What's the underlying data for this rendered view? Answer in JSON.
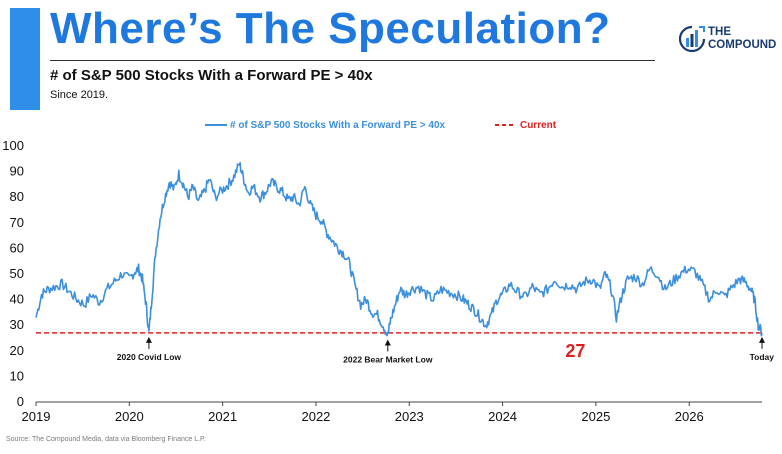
{
  "header": {
    "title": "Where’s The Speculation?",
    "subtitle": "# of S&P 500 Stocks With a Forward PE > 40x",
    "since": "Since 2019."
  },
  "logo": {
    "line1": "THE",
    "line2": "COMPOUND",
    "icon": "bar-chart-circle-icon"
  },
  "source": "Source: The Compound Media, data via Bloomberg Finance L.P.",
  "colors": {
    "accent": "#2F8FE8",
    "title": "#1F78DD",
    "series": "#3C8FDD",
    "current": "#E02020"
  },
  "chart_data": {
    "type": "line",
    "title": "",
    "xlabel": "",
    "ylabel": "",
    "ylim": [
      0,
      100
    ],
    "y_ticks": [
      "0",
      "10",
      "20",
      "30",
      "40",
      "50",
      "60",
      "70",
      "80",
      "90",
      "100"
    ],
    "x_ticks": [
      "2019",
      "2020",
      "2021",
      "2022",
      "2023",
      "2024",
      "2025",
      "2026"
    ],
    "xlim": [
      2019.0,
      2026.78
    ],
    "grid": false,
    "legend": {
      "position": "top-center"
    },
    "series": [
      {
        "name": "# of S&P 500 Stocks With a Forward PE > 40x",
        "color": "#3C8FDD",
        "x": [
          2019.0,
          2019.06,
          2019.12,
          2019.2,
          2019.28,
          2019.36,
          2019.44,
          2019.52,
          2019.6,
          2019.68,
          2019.76,
          2019.84,
          2019.92,
          2020.0,
          2020.06,
          2020.1,
          2020.14,
          2020.18,
          2020.21,
          2020.24,
          2020.28,
          2020.33,
          2020.38,
          2020.43,
          2020.48,
          2020.53,
          2020.58,
          2020.63,
          2020.68,
          2020.74,
          2020.8,
          2020.86,
          2020.92,
          2021.0,
          2021.06,
          2021.12,
          2021.18,
          2021.22,
          2021.27,
          2021.33,
          2021.4,
          2021.46,
          2021.52,
          2021.58,
          2021.64,
          2021.7,
          2021.76,
          2021.82,
          2021.88,
          2021.94,
          2022.0,
          2022.06,
          2022.12,
          2022.18,
          2022.24,
          2022.3,
          2022.36,
          2022.42,
          2022.48,
          2022.54,
          2022.6,
          2022.66,
          2022.72,
          2022.77,
          2022.8,
          2022.85,
          2022.9,
          2022.96,
          2023.02,
          2023.1,
          2023.18,
          2023.26,
          2023.34,
          2023.42,
          2023.5,
          2023.58,
          2023.64,
          2023.7,
          2023.76,
          2023.82,
          2023.88,
          2023.94,
          2024.0,
          2024.08,
          2024.16,
          2024.24,
          2024.32,
          2024.4,
          2024.48,
          2024.56,
          2024.64,
          2024.72,
          2024.8,
          2024.88,
          2024.96,
          2025.04,
          2025.1,
          2025.16,
          2025.22,
          2025.28,
          2025.34,
          2025.42,
          2025.5,
          2025.58,
          2025.66,
          2025.74,
          2025.82,
          2025.9,
          2025.98,
          2026.06,
          2026.14,
          2026.22,
          2026.3,
          2026.38,
          2026.46,
          2026.54,
          2026.6,
          2026.66,
          2026.7,
          2026.74,
          2026.78
        ],
        "y": [
          33,
          42,
          44,
          45,
          46,
          43,
          40,
          38,
          42,
          39,
          44,
          47,
          50,
          48,
          51,
          52,
          48,
          38,
          27,
          40,
          58,
          72,
          80,
          86,
          83,
          89,
          85,
          80,
          84,
          78,
          82,
          87,
          80,
          83,
          85,
          88,
          93,
          88,
          82,
          84,
          80,
          82,
          86,
          84,
          82,
          79,
          80,
          77,
          84,
          77,
          73,
          71,
          66,
          63,
          60,
          58,
          54,
          45,
          38,
          40,
          35,
          34,
          30,
          26,
          32,
          38,
          44,
          42,
          44,
          45,
          42,
          40,
          44,
          43,
          42,
          40,
          38,
          36,
          33,
          30,
          34,
          40,
          42,
          46,
          43,
          41,
          45,
          42,
          44,
          48,
          45,
          46,
          44,
          47,
          48,
          44,
          50,
          45,
          33,
          42,
          48,
          49,
          46,
          52,
          50,
          44,
          47,
          50,
          52,
          51,
          46,
          40,
          44,
          41,
          45,
          48,
          47,
          44,
          40,
          30,
          27
        ]
      }
    ],
    "current": {
      "name": "Current",
      "value": 27,
      "label": "27",
      "color": "#E02020"
    },
    "annotations": [
      {
        "label": "2020 Covid Low",
        "x": 2020.21,
        "y": 27
      },
      {
        "label": "2022 Bear Market Low",
        "x": 2022.77,
        "y": 26
      },
      {
        "label": "Today",
        "x": 2026.78,
        "y": 27
      }
    ]
  }
}
